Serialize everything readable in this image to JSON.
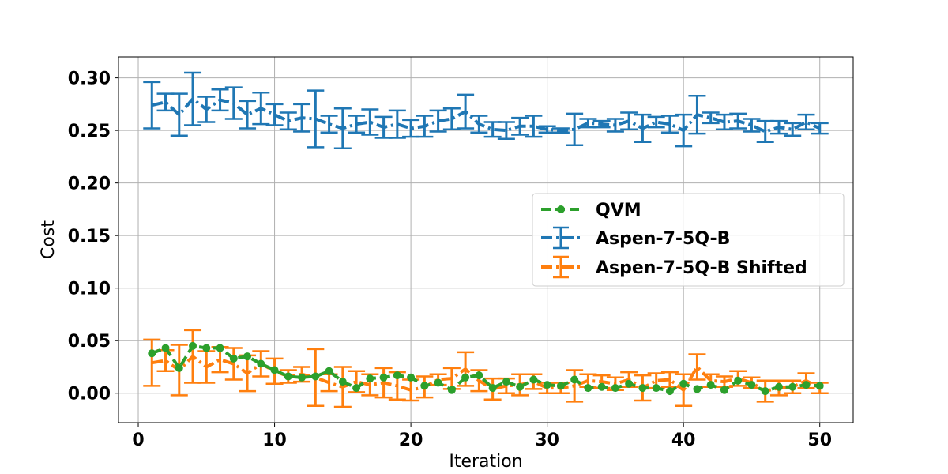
{
  "chart_data": {
    "type": "line",
    "xlabel": "Iteration",
    "ylabel": "Cost",
    "xlim": [
      -1.45,
      52.45
    ],
    "ylim": [
      -0.028,
      0.32
    ],
    "xticks": [
      "0",
      "10",
      "20",
      "30",
      "40",
      "50"
    ],
    "yticks": [
      "0.00",
      "0.05",
      "0.10",
      "0.15",
      "0.20",
      "0.25",
      "0.30"
    ],
    "grid": true,
    "legend_position": "center-right",
    "x": [
      1,
      2,
      3,
      4,
      5,
      6,
      7,
      8,
      9,
      10,
      11,
      12,
      13,
      14,
      15,
      16,
      17,
      18,
      19,
      20,
      21,
      22,
      23,
      24,
      25,
      26,
      27,
      28,
      29,
      30,
      31,
      32,
      33,
      34,
      35,
      36,
      37,
      38,
      39,
      40,
      41,
      42,
      43,
      44,
      45,
      46,
      47,
      48,
      49,
      50
    ],
    "series": [
      {
        "name": "QVM",
        "color": "#2ca02c",
        "style": "dashed-with-markers",
        "values": [
          0.038,
          0.043,
          0.024,
          0.045,
          0.043,
          0.043,
          0.033,
          0.035,
          0.028,
          0.022,
          0.016,
          0.015,
          0.016,
          0.021,
          0.011,
          0.005,
          0.014,
          0.015,
          0.017,
          0.015,
          0.007,
          0.01,
          0.003,
          0.015,
          0.017,
          0.005,
          0.011,
          0.006,
          0.013,
          0.008,
          0.007,
          0.013,
          0.005,
          0.006,
          0.005,
          0.009,
          0.005,
          0.005,
          0.002,
          0.009,
          0.004,
          0.008,
          0.003,
          0.012,
          0.008,
          0.002,
          0.006,
          0.006,
          0.008,
          0.007
        ]
      },
      {
        "name": "Aspen-7-5Q-B",
        "color": "#1f77b4",
        "style": "dashdot-with-errorbars",
        "values": [
          0.274,
          0.277,
          0.265,
          0.28,
          0.27,
          0.279,
          0.276,
          0.265,
          0.271,
          0.265,
          0.259,
          0.262,
          0.261,
          0.256,
          0.252,
          0.256,
          0.258,
          0.253,
          0.256,
          0.252,
          0.254,
          0.259,
          0.261,
          0.268,
          0.256,
          0.251,
          0.25,
          0.254,
          0.254,
          0.251,
          0.25,
          0.251,
          0.257,
          0.256,
          0.255,
          0.259,
          0.252,
          0.258,
          0.256,
          0.25,
          0.265,
          0.262,
          0.258,
          0.259,
          0.255,
          0.249,
          0.253,
          0.251,
          0.258,
          0.252
        ],
        "errors": [
          0.022,
          0.008,
          0.02,
          0.025,
          0.012,
          0.01,
          0.015,
          0.013,
          0.015,
          0.01,
          0.008,
          0.013,
          0.027,
          0.008,
          0.019,
          0.008,
          0.012,
          0.01,
          0.013,
          0.008,
          0.01,
          0.01,
          0.01,
          0.016,
          0.008,
          0.007,
          0.008,
          0.008,
          0.01,
          0.003,
          0.002,
          0.015,
          0.004,
          0.003,
          0.006,
          0.008,
          0.013,
          0.005,
          0.008,
          0.015,
          0.018,
          0.005,
          0.007,
          0.007,
          0.006,
          0.01,
          0.006,
          0.006,
          0.007,
          0.005
        ]
      },
      {
        "name": "Aspen-7-5Q-B Shifted",
        "color": "#ff7f0e",
        "style": "dashdot-with-errorbars",
        "values": [
          0.029,
          0.031,
          0.022,
          0.035,
          0.025,
          0.032,
          0.028,
          0.019,
          0.028,
          0.021,
          0.016,
          0.018,
          0.015,
          0.01,
          0.006,
          0.011,
          0.008,
          0.01,
          0.007,
          0.003,
          0.006,
          0.013,
          0.014,
          0.023,
          0.012,
          0.004,
          0.007,
          0.008,
          0.011,
          0.005,
          0.005,
          0.007,
          0.012,
          0.011,
          0.009,
          0.013,
          0.005,
          0.012,
          0.013,
          0.003,
          0.025,
          0.012,
          0.011,
          0.014,
          0.01,
          0.002,
          0.005,
          0.006,
          0.012,
          0.005
        ],
        "errors": [
          0.022,
          0.01,
          0.024,
          0.025,
          0.015,
          0.012,
          0.015,
          0.017,
          0.012,
          0.012,
          0.006,
          0.007,
          0.027,
          0.008,
          0.019,
          0.01,
          0.01,
          0.014,
          0.013,
          0.01,
          0.01,
          0.005,
          0.01,
          0.016,
          0.01,
          0.01,
          0.007,
          0.01,
          0.007,
          0.005,
          0.005,
          0.015,
          0.006,
          0.006,
          0.006,
          0.007,
          0.012,
          0.007,
          0.007,
          0.015,
          0.012,
          0.006,
          0.005,
          0.007,
          0.005,
          0.01,
          0.007,
          0.006,
          0.007,
          0.005
        ]
      }
    ]
  }
}
